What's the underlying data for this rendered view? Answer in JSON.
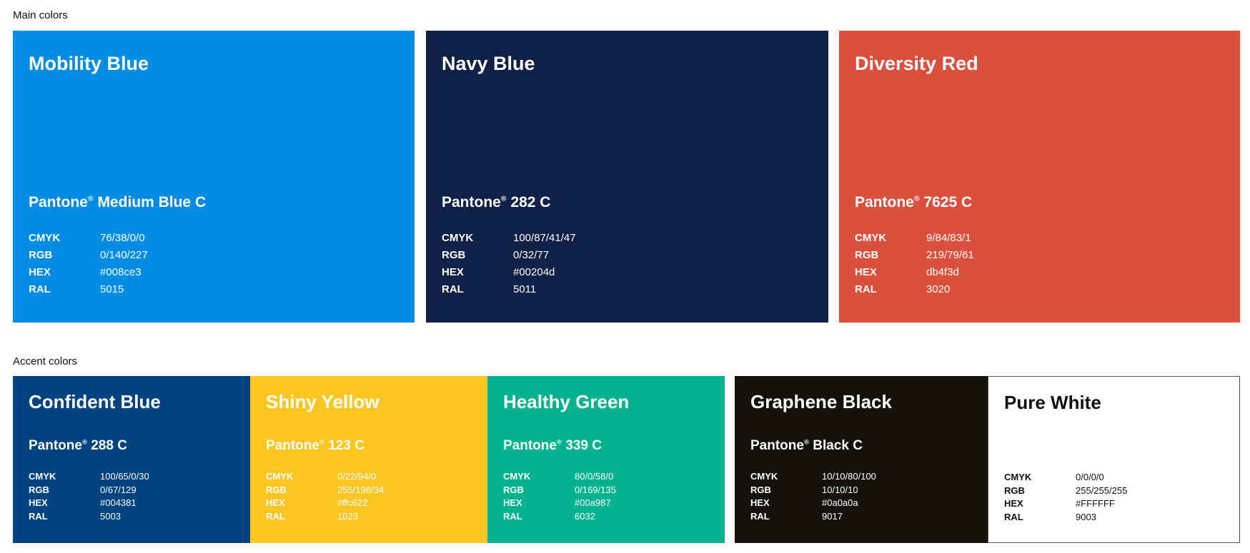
{
  "main_section": {
    "label": "Main colors",
    "colors": [
      {
        "name": "Mobility Blue",
        "pantone": "Pantone",
        "pantone_suffix": "Medium Blue C",
        "color": "#008ce3",
        "specs": [
          [
            "CMYK",
            "76/38/0/0"
          ],
          [
            "RGB",
            "0/140/227"
          ],
          [
            "HEX",
            "#008ce3"
          ],
          [
            "RAL",
            "5015"
          ]
        ]
      },
      {
        "name": "Navy Blue",
        "pantone": "Pantone",
        "pantone_suffix": "282 C",
        "color": "#0f2147",
        "specs": [
          [
            "CMYK",
            "100/87/41/47"
          ],
          [
            "RGB",
            "0/32/77"
          ],
          [
            "HEX",
            "#00204d"
          ],
          [
            "RAL",
            "5011"
          ]
        ]
      },
      {
        "name": "Diversity Red",
        "pantone": "Pantone",
        "pantone_suffix": "7625 C",
        "color": "#db4f3d",
        "specs": [
          [
            "CMYK",
            "9/84/83/1"
          ],
          [
            "RGB",
            "219/79/61"
          ],
          [
            "HEX",
            "db4f3d"
          ],
          [
            "RAL",
            "3020"
          ]
        ]
      }
    ]
  },
  "accent_section": {
    "label": "Accent colors",
    "colors": [
      {
        "name": "Confident Blue",
        "pantone": "Pantone",
        "pantone_suffix": "288 C",
        "color": "#004381",
        "specs": [
          [
            "CMYK",
            "100/65/0/30"
          ],
          [
            "RGB",
            "0/67/129"
          ],
          [
            "HEX",
            "#004381"
          ],
          [
            "RAL",
            "5003"
          ]
        ]
      },
      {
        "name": "Shiny Yellow",
        "pantone": "Pantone",
        "pantone_suffix": "123 C",
        "color": "#fcc622",
        "specs": [
          [
            "CMYK",
            "0/22/94/0"
          ],
          [
            "RGB",
            "255/198/34"
          ],
          [
            "HEX",
            "#ffc622"
          ],
          [
            "RAL",
            "1023"
          ]
        ]
      },
      {
        "name": "Healthy Green",
        "pantone": "Pantone",
        "pantone_suffix": "339 C",
        "color": "#00b38e",
        "specs": [
          [
            "CMYK",
            "80/0/58/0"
          ],
          [
            "RGB",
            "0/169/135"
          ],
          [
            "HEX",
            "#00a987"
          ],
          [
            "RAL",
            "6032"
          ]
        ]
      },
      {
        "name": "Graphene Black",
        "pantone": "Pantone",
        "pantone_suffix": "Black C",
        "color": "#14120a",
        "specs": [
          [
            "CMYK",
            "10/10/80/100"
          ],
          [
            "RGB",
            "10/10/10"
          ],
          [
            "HEX",
            "#0a0a0a"
          ],
          [
            "RAL",
            "9017"
          ]
        ]
      },
      {
        "name": "Pure White",
        "color": "#ffffff",
        "specs": [
          [
            "CMYK",
            "0/0/0/0"
          ],
          [
            "RGB",
            "255/255/255"
          ],
          [
            "HEX",
            "#FFFFFF"
          ],
          [
            "RAL",
            "9003"
          ]
        ]
      }
    ]
  }
}
